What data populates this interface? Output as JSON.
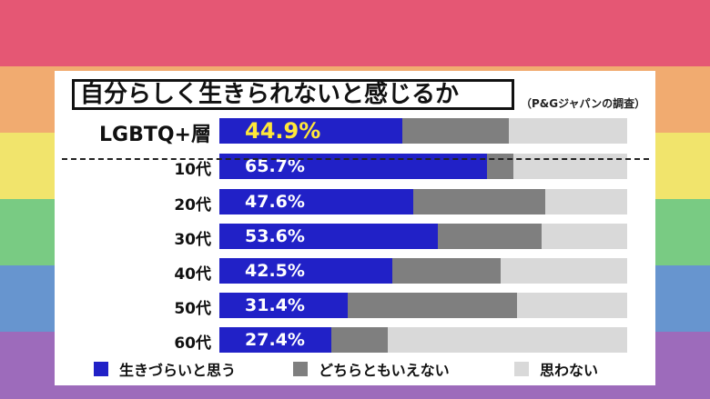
{
  "title": "自分らしく生きられないと感じるか",
  "source": "（P&Gジャパンの調査）",
  "colors": {
    "background_stripes": [
      "#e55774",
      "#f1ab70",
      "#f1e46c",
      "#79cb83",
      "#6795cf",
      "#9d6bbb"
    ],
    "series": [
      "#2121c7",
      "#7f7f7f",
      "#d9d9d9"
    ],
    "highlight_text": "#ffe83a"
  },
  "chart_data": {
    "type": "bar",
    "orientation": "horizontal",
    "stacked": true,
    "title": "自分らしく生きられないと感じるか",
    "categories": [
      "LGBTQ+層",
      "10代",
      "20代",
      "30代",
      "40代",
      "50代",
      "60代"
    ],
    "xlim": [
      0,
      100
    ],
    "series": [
      {
        "name": "生きづらいと思う",
        "values": [
          44.9,
          65.7,
          47.6,
          53.6,
          42.5,
          31.4,
          27.4
        ],
        "color": "#2121c7"
      },
      {
        "name": "どちらともいえない",
        "values": [
          26.1,
          6.3,
          32.4,
          25.4,
          26.5,
          41.6,
          14.0
        ],
        "color": "#7f7f7f"
      },
      {
        "name": "思わない",
        "values": [
          29.0,
          28.0,
          20.0,
          21.0,
          31.0,
          27.0,
          58.6
        ],
        "color": "#d9d9d9"
      }
    ],
    "data_labels": [
      "44.9%",
      "65.7%",
      "47.6%",
      "53.6%",
      "42.5%",
      "31.4%",
      "27.4%"
    ],
    "legend": {
      "placement": "bottom",
      "labels": [
        "生きづらいと思う",
        "どちらともいえない",
        "思わない"
      ]
    },
    "grid": false
  }
}
